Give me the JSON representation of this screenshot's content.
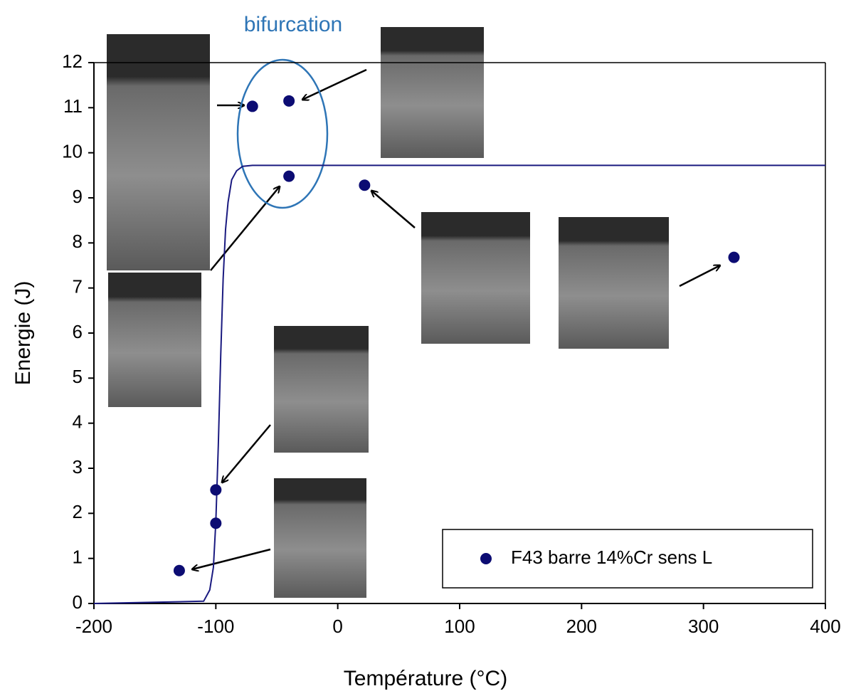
{
  "chart_data": {
    "type": "scatter",
    "x_label": "Température (°C)",
    "y_label": "Energie (J)",
    "annotation": "bifurcation",
    "xlim": [
      -200,
      400
    ],
    "ylim": [
      0,
      12
    ],
    "xticks": [
      -200,
      -100,
      0,
      100,
      200,
      300,
      400
    ],
    "yticks": [
      0,
      1,
      2,
      3,
      4,
      5,
      6,
      7,
      8,
      9,
      10,
      11,
      12
    ],
    "legend": "bottom-right",
    "series": [
      {
        "name": "F43 barre 14%Cr sens L",
        "color": "#0c0c73",
        "x": [
          -130,
          -100,
          -100,
          -70,
          -40,
          -40,
          22,
          325
        ],
        "values": [
          0.73,
          1.78,
          2.52,
          11.03,
          11.15,
          9.48,
          9.28,
          7.68
        ]
      }
    ],
    "fit": {
      "color": "#1a1a80",
      "x": [
        -200,
        -110,
        -105,
        -102,
        -100,
        -98,
        -96,
        -94,
        -92,
        -90,
        -87,
        -83,
        -78,
        -70,
        400
      ],
      "values": [
        0,
        0.05,
        0.3,
        0.8,
        1.8,
        3.5,
        5.5,
        7.2,
        8.3,
        8.9,
        9.4,
        9.6,
        9.7,
        9.72,
        9.72
      ]
    }
  }
}
